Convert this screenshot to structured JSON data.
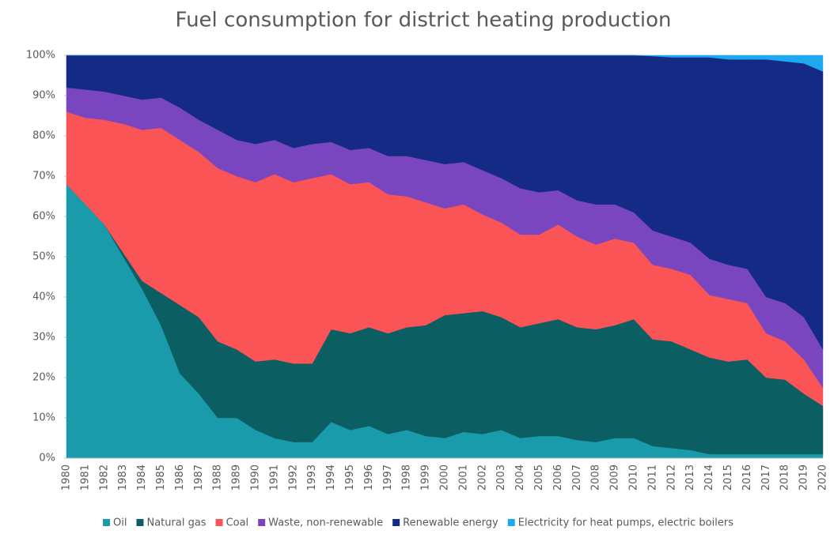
{
  "chart_data": {
    "type": "stacked-area",
    "title": "Fuel consumption for district heating production",
    "categories": [
      "1980",
      "1981",
      "1982",
      "1983",
      "1984",
      "1985",
      "1986",
      "1987",
      "1988",
      "1989",
      "1990",
      "1991",
      "1992",
      "1993",
      "1994",
      "1995",
      "1996",
      "1997",
      "1998",
      "1999",
      "2000",
      "2001",
      "2002",
      "2003",
      "2004",
      "2005",
      "2006",
      "2007",
      "2008",
      "2009",
      "2010",
      "2011",
      "2012",
      "2013",
      "2014",
      "2015",
      "2016",
      "2017",
      "2018",
      "2019",
      "2020"
    ],
    "series": [
      {
        "name": "Oil",
        "color": "#1a9bab",
        "values": [
          68,
          63,
          58,
          50,
          42,
          33,
          21,
          16,
          10,
          10,
          7,
          5,
          4,
          4,
          9,
          7,
          8,
          6,
          7,
          5.5,
          5,
          6.5,
          6,
          7,
          5,
          5.5,
          5.5,
          4.5,
          4,
          5,
          5,
          3,
          2.5,
          2,
          1,
          1,
          1,
          1,
          1,
          1,
          1
        ]
      },
      {
        "name": "Natural gas",
        "color": "#0b5f63",
        "values": [
          0,
          0,
          0,
          1,
          2,
          8,
          17,
          19,
          19,
          17,
          17,
          19.5,
          19.5,
          19.5,
          23,
          24,
          24.5,
          25,
          25.5,
          27.5,
          30.5,
          29.5,
          30.5,
          28,
          27.5,
          28,
          29,
          28,
          28,
          28,
          29.5,
          26.5,
          26.5,
          25,
          24,
          23,
          23.5,
          19,
          18.5,
          15,
          12
        ]
      },
      {
        "name": "Coal",
        "color": "#fb5457",
        "values": [
          18,
          21.5,
          26,
          32,
          37.5,
          41,
          41,
          41,
          43,
          43,
          44.5,
          46,
          45,
          46,
          38.5,
          37,
          36,
          34.5,
          32.5,
          30.5,
          26.5,
          27,
          24,
          23.5,
          23,
          22,
          23.5,
          22.5,
          21,
          21.5,
          19,
          18.5,
          18,
          18.5,
          15.5,
          15.5,
          14,
          11,
          9.5,
          8.5,
          4.5
        ]
      },
      {
        "name": "Waste, non-renewable",
        "color": "#7a46c0",
        "values": [
          6,
          7,
          7,
          7,
          7.5,
          7.5,
          8,
          8,
          9.5,
          9,
          9.5,
          8.5,
          8.5,
          8.5,
          8,
          8.5,
          8.5,
          9.5,
          10,
          10.5,
          11,
          10.5,
          11,
          11,
          11.5,
          10.5,
          8.5,
          9,
          10,
          8.5,
          7.5,
          8.5,
          8,
          8,
          9,
          8.5,
          8.5,
          9,
          9.5,
          10.5,
          9.5
        ]
      },
      {
        "name": "Renewable energy",
        "color": "#152a85",
        "values": [
          8,
          8.5,
          9,
          10,
          11,
          10.5,
          13,
          16,
          18.5,
          21,
          22,
          21,
          23,
          22,
          21.5,
          23.5,
          23,
          25,
          25,
          26,
          27,
          26.5,
          28.5,
          30.5,
          33,
          34,
          33.5,
          36,
          37,
          37,
          39,
          43.3,
          44.5,
          46,
          50,
          51,
          52,
          59,
          60,
          63,
          69
        ]
      },
      {
        "name": "Electricity for heat pumps, electric boilers",
        "color": "#1fa8f0",
        "values": [
          0,
          0,
          0,
          0,
          0,
          0,
          0,
          0,
          0,
          0,
          0,
          0,
          0,
          0,
          0,
          0,
          0,
          0,
          0,
          0,
          0,
          0,
          0,
          0,
          0,
          0,
          0,
          0,
          0,
          0,
          0,
          0.2,
          0.5,
          0.5,
          0.5,
          1,
          1,
          1,
          1.5,
          2,
          4
        ]
      }
    ],
    "ylim": [
      0,
      100
    ],
    "yticks": [
      {
        "value": 0,
        "label": "0%"
      },
      {
        "value": 10,
        "label": "10%"
      },
      {
        "value": 20,
        "label": "20%"
      },
      {
        "value": 30,
        "label": "30%"
      },
      {
        "value": 40,
        "label": "40%"
      },
      {
        "value": 50,
        "label": "50%"
      },
      {
        "value": 60,
        "label": "60%"
      },
      {
        "value": 70,
        "label": "70%"
      },
      {
        "value": 80,
        "label": "80%"
      },
      {
        "value": 90,
        "label": "90%"
      },
      {
        "value": 100,
        "label": "100%"
      }
    ],
    "legend": "bottom"
  }
}
